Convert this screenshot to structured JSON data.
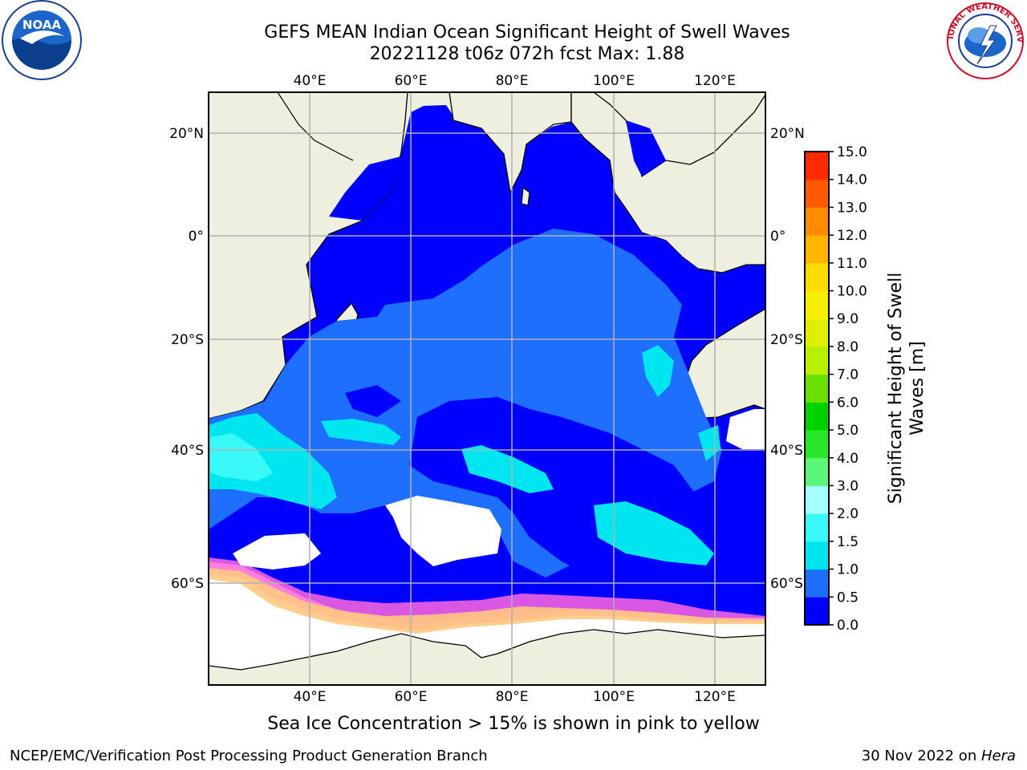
{
  "title_line1": "GEFS MEAN Indian Ocean Significant Height of Swell Waves",
  "title_line2": "20221128 t06z 072h fcst   Max: 1.88",
  "map": {
    "lon_range": [
      20,
      130
    ],
    "lat_range": [
      -70,
      28
    ],
    "top_lon_ticks": [
      "40°E",
      "60°E",
      "80°E",
      "100°E",
      "120°E"
    ],
    "bottom_lon_ticks": [
      "40°E",
      "60°E",
      "80°E",
      "100°E",
      "120°E"
    ],
    "left_lat_ticks": [
      "20°N",
      "0°",
      "20°S",
      "40°S",
      "60°S"
    ],
    "right_lat_ticks": [
      "20°N",
      "0°",
      "20°S",
      "40°S",
      "60°S"
    ],
    "land_color": "#efefdf",
    "ice_color": "#ffffff",
    "grid": true
  },
  "colorbar": {
    "label": "Significant Height of Swell Waves [m]",
    "label_line1": "Significant Height of Swell",
    "label_line2": "Waves [m]",
    "ticks": [
      "0.0",
      "0.5",
      "1.0",
      "1.5",
      "2.0",
      "3.0",
      "4.0",
      "5.0",
      "6.0",
      "7.0",
      "8.0",
      "9.0",
      "10.0",
      "11.0",
      "12.0",
      "13.0",
      "14.0",
      "15.0"
    ],
    "colors": [
      "#0000ff",
      "#1f6fff",
      "#00e6f0",
      "#38f8f8",
      "#a6ffff",
      "#5bf77a",
      "#28e628",
      "#00d200",
      "#6ae000",
      "#b8f000",
      "#dcf000",
      "#f6f000",
      "#ffdc00",
      "#ffb400",
      "#ff8c00",
      "#ff5a00",
      "#ff2a00",
      "#ff0000"
    ]
  },
  "logos": {
    "left": "NOAA",
    "right": "NATIONAL WEATHER SERVICE"
  },
  "subtitle": "Sea Ice Concentration > 15% is shown in pink to yellow",
  "footer_left": "NCEP/EMC/Verification Post Processing Product Generation Branch",
  "footer_right_date": "30 Nov 2022 on ",
  "footer_right_host": "Hera"
}
